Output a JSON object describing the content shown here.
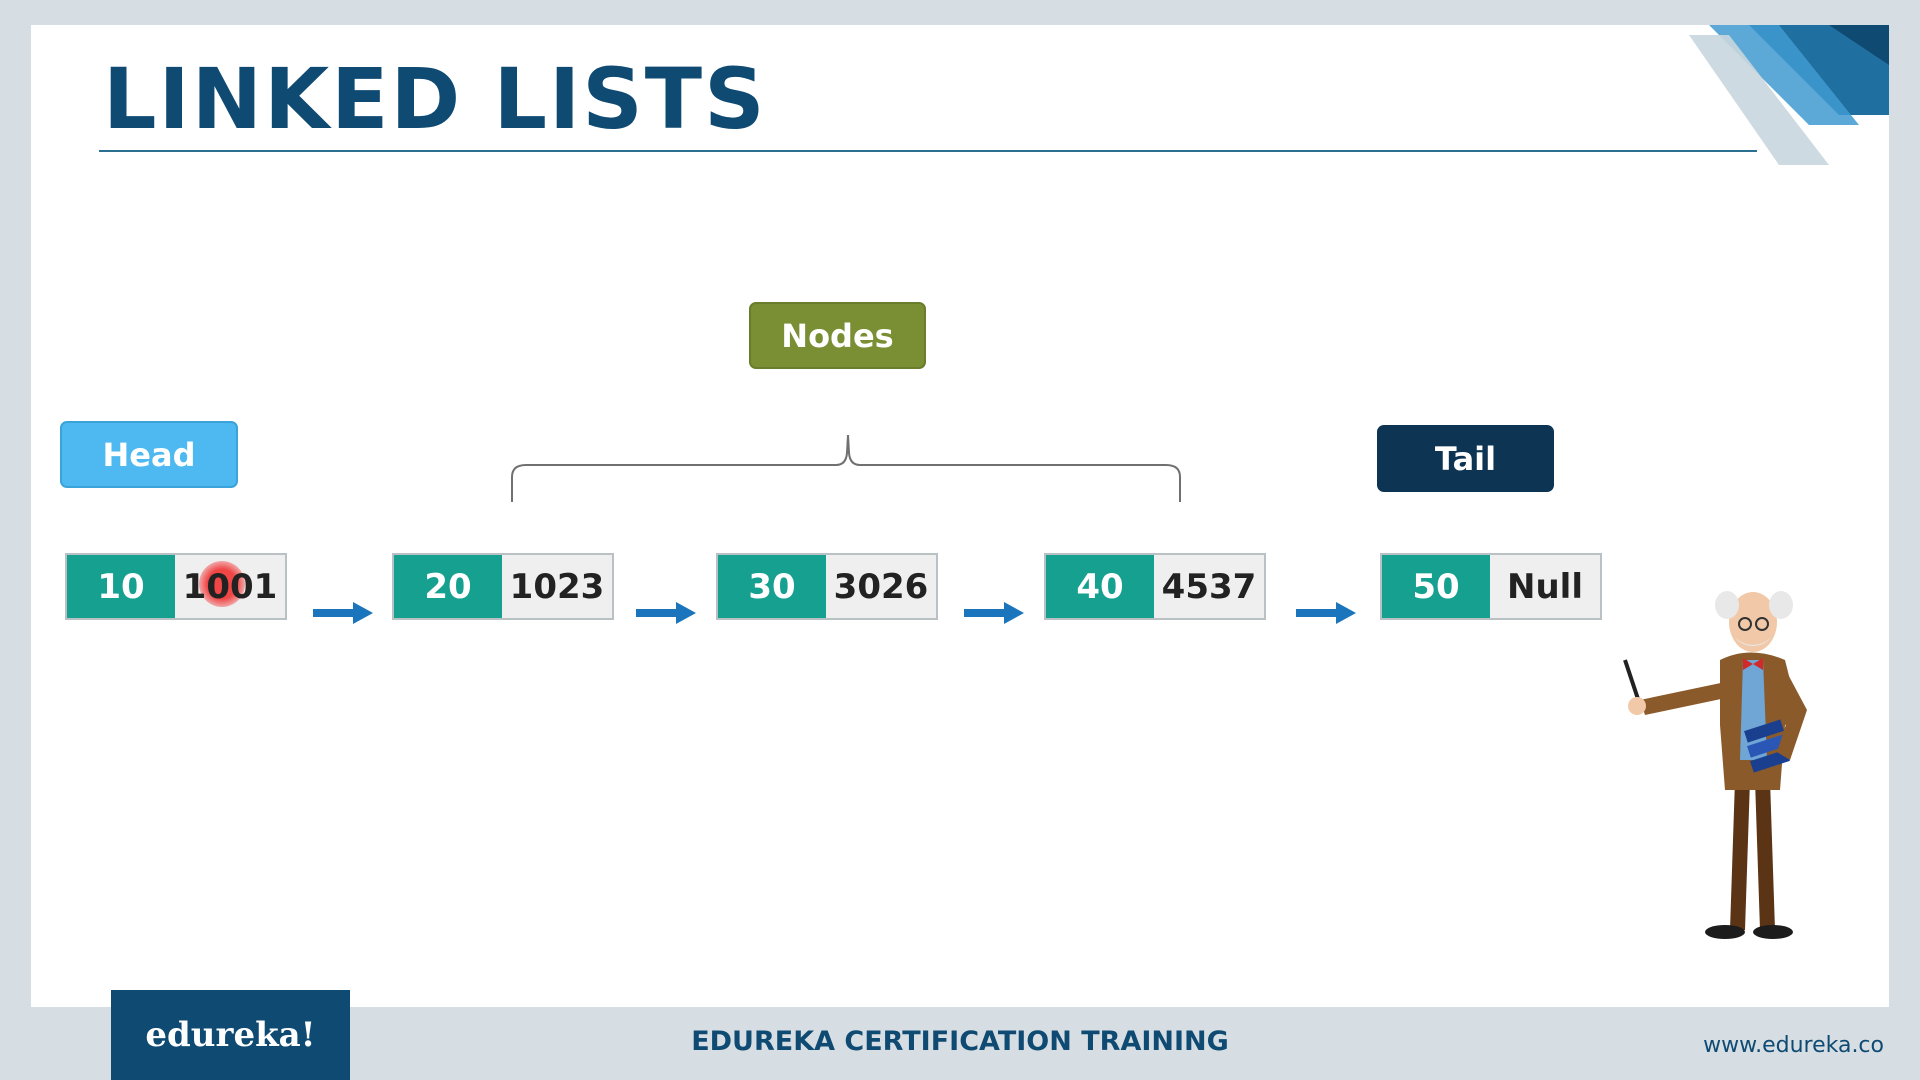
{
  "title": "LINKED LISTS",
  "labels": {
    "nodes": "Nodes",
    "head": "Head",
    "tail": "Tail"
  },
  "nodes": [
    {
      "value": "10",
      "pointer": "1001"
    },
    {
      "value": "20",
      "pointer": "1023"
    },
    {
      "value": "30",
      "pointer": "3026"
    },
    {
      "value": "40",
      "pointer": "4537"
    },
    {
      "value": "50",
      "pointer": "Null"
    }
  ],
  "footer": {
    "logo": "edureka!",
    "center": "EDUREKA CERTIFICATION TRAINING",
    "url": "www.edureka.co"
  },
  "colors": {
    "title": "#0f4a73",
    "node_value": "#16a090",
    "node_pointer": "#efefef",
    "arrow": "#1b75bc",
    "nodes_label": "#7a8f34",
    "head_label": "#4db9f0",
    "tail_label": "#0d3553"
  }
}
